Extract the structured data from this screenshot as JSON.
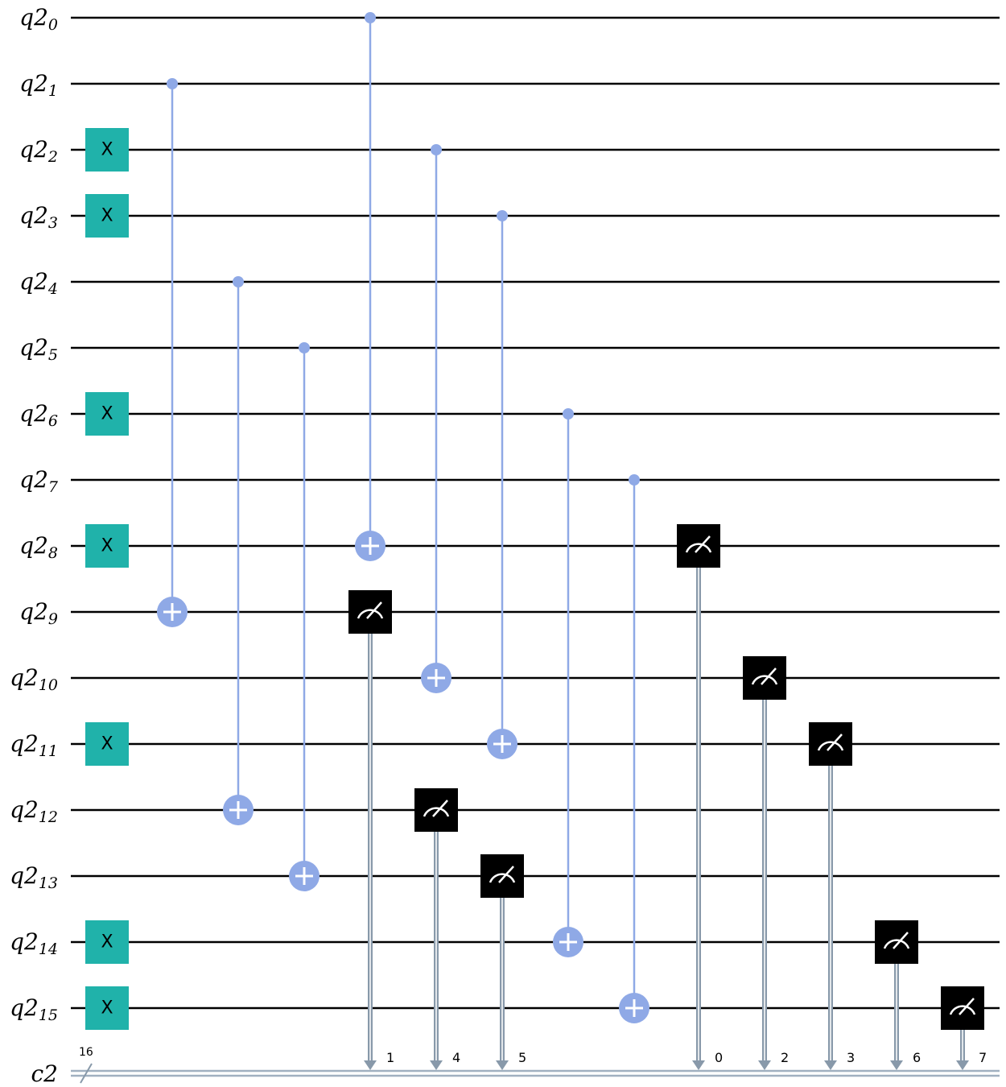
{
  "circuit": {
    "qubit_register": "q2",
    "classical_register": "c2",
    "classical_bits": "16",
    "qubits": [
      "0",
      "1",
      "2",
      "3",
      "4",
      "5",
      "6",
      "7",
      "8",
      "9",
      "10",
      "11",
      "12",
      "13",
      "14",
      "15"
    ],
    "x_gate_label": "X",
    "x_gates": [
      2,
      3,
      6,
      8,
      11,
      14,
      15
    ],
    "cnots": [
      {
        "control": 1,
        "target": 9
      },
      {
        "control": 4,
        "target": 12
      },
      {
        "control": 5,
        "target": 13
      },
      {
        "control": 0,
        "target": 8
      },
      {
        "control": 2,
        "target": 10
      },
      {
        "control": 3,
        "target": 11
      },
      {
        "control": 6,
        "target": 14
      },
      {
        "control": 7,
        "target": 15
      }
    ],
    "measurements": [
      {
        "qubit": 9,
        "cbit": "1"
      },
      {
        "qubit": 12,
        "cbit": "4"
      },
      {
        "qubit": 13,
        "cbit": "5"
      },
      {
        "qubit": 8,
        "cbit": "0"
      },
      {
        "qubit": 10,
        "cbit": "2"
      },
      {
        "qubit": 11,
        "cbit": "3"
      },
      {
        "qubit": 14,
        "cbit": "6"
      },
      {
        "qubit": 15,
        "cbit": "7"
      }
    ]
  },
  "colors": {
    "x_gate": "#20b2aa",
    "cnot": "#8fa9e6",
    "measure": "#000000",
    "classical_wire": "#a0b0c0"
  }
}
